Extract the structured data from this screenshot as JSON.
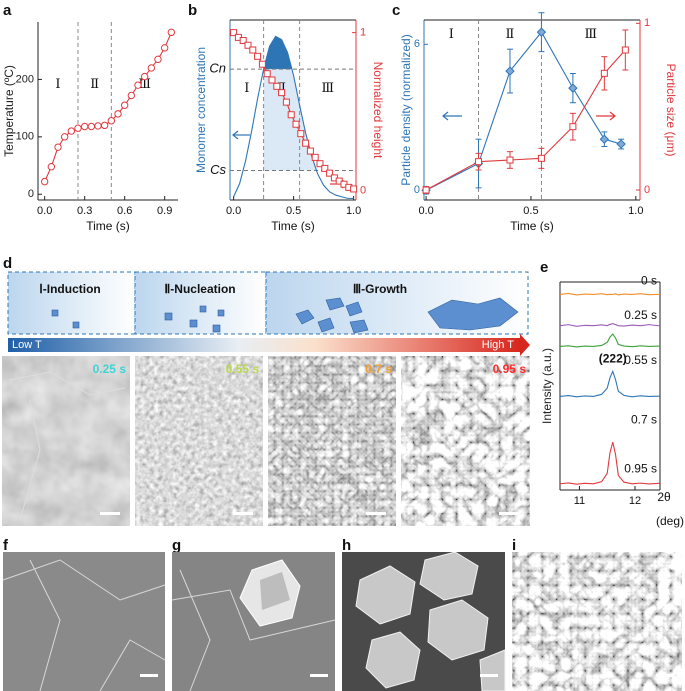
{
  "panel_labels": [
    "a",
    "b",
    "c",
    "d",
    "e",
    "f",
    "g",
    "h",
    "i"
  ],
  "schematic": {
    "stages": [
      "Ⅰ-Induction",
      "Ⅱ-Nucleation",
      "Ⅲ-Growth"
    ],
    "low_t": "Low T",
    "high_t": "High T"
  },
  "sem": {
    "times": [
      "0.25 s",
      "0.55 s",
      "0.7 s",
      "0.95 s"
    ]
  },
  "chart_data": [
    {
      "type": "line",
      "x_label": "Time (s)",
      "y_label": "Temperature (ºC)",
      "x": [
        0,
        0.05,
        0.1,
        0.15,
        0.2,
        0.25,
        0.3,
        0.35,
        0.4,
        0.45,
        0.5,
        0.55,
        0.6,
        0.65,
        0.7,
        0.75,
        0.8,
        0.85,
        0.9,
        0.95
      ],
      "series": [
        {
          "color": "#e0393e",
          "marker": "circle",
          "values": [
            22,
            48,
            82,
            100,
            110,
            115,
            118,
            118,
            119,
            120,
            128,
            140,
            155,
            172,
            190,
            205,
            220,
            235,
            255,
            282
          ]
        }
      ],
      "xlim": [
        -0.05,
        1.0
      ],
      "xticks": [
        {
          "value": 0,
          "label": "0.0"
        },
        0.3,
        0.6,
        0.9
      ],
      "ylim": [
        -10,
        300
      ],
      "yticks": [
        0,
        100,
        200
      ],
      "dividers": [
        0.25,
        0.5
      ],
      "regions": [
        "Ⅰ",
        "Ⅱ",
        "Ⅲ"
      ]
    },
    {
      "type": "line",
      "x_label": "Time (s)",
      "y_label": "Monomer concentration",
      "y2_label": "Normalized height",
      "y_color": "#2e75b6",
      "y2_color": "#e0393e",
      "grid": true,
      "series": [
        {
          "color": "#2e75b6",
          "marker": "none",
          "fill": [
            "#dbe8f5",
            "#2e75b6"
          ],
          "x": [
            0,
            0.05,
            0.1,
            0.15,
            0.2,
            0.25,
            0.3,
            0.35,
            0.4,
            0.45,
            0.5,
            0.55,
            0.6,
            0.65,
            0.7,
            0.75,
            0.8,
            0.85,
            0.9,
            0.95,
            1.0
          ],
          "values": [
            0.02,
            0.1,
            0.24,
            0.42,
            0.62,
            0.8,
            0.94,
            1.0,
            0.98,
            0.9,
            0.76,
            0.58,
            0.41,
            0.27,
            0.16,
            0.09,
            0.05,
            0.03,
            0.02,
            0.01,
            0.01
          ]
        },
        {
          "color": "#e0393e",
          "marker": "square",
          "axis": "y2",
          "x": [
            0,
            0.04,
            0.08,
            0.12,
            0.16,
            0.2,
            0.24,
            0.28,
            0.32,
            0.36,
            0.4,
            0.44,
            0.48,
            0.52,
            0.56,
            0.6,
            0.64,
            0.68,
            0.72,
            0.76,
            0.8,
            0.84,
            0.88,
            0.92,
            0.96,
            1.0
          ],
          "values": [
            1.0,
            0.97,
            0.95,
            0.92,
            0.89,
            0.85,
            0.8,
            0.74,
            0.7,
            0.66,
            0.62,
            0.56,
            0.48,
            0.42,
            0.36,
            0.3,
            0.25,
            0.21,
            0.17,
            0.14,
            0.11,
            0.08,
            0.06,
            0.04,
            0.02,
            0.01
          ]
        }
      ],
      "xlim": [
        -0.03,
        1.02
      ],
      "xticks": [
        {
          "value": 0,
          "label": "0.0"
        },
        {
          "value": 0.5,
          "label": "0.5"
        },
        {
          "value": 1,
          "label": "1.0"
        }
      ],
      "ylim": [
        0,
        1.1
      ],
      "yticks": [
        {
          "value": 0.8,
          "label": "Cn"
        },
        {
          "value": 0.18,
          "label": "Cs"
        }
      ],
      "y2lim": [
        -0.06,
        1.08
      ],
      "y2ticks": [
        0,
        1
      ],
      "dividers": [
        0.25,
        0.55
      ],
      "regions": [
        "Ⅰ",
        "Ⅱ",
        "Ⅲ"
      ]
    },
    {
      "type": "line",
      "x_label": "Time (s)",
      "y_label": "Particle density (normalized)",
      "y2_label": "Particle size (μm)",
      "y_color": "#2e75b6",
      "y2_color": "#e0393e",
      "series": [
        {
          "color": "#2e75b6",
          "marker": "diamond",
          "x": [
            0,
            0.25,
            0.4,
            0.55,
            0.7,
            0.85,
            0.93
          ],
          "values": [
            0,
            1.1,
            4.9,
            6.5,
            4.2,
            2.1,
            1.9
          ],
          "errors": [
            0.15,
            1.0,
            0.9,
            0.8,
            0.6,
            0.3,
            0.2
          ]
        },
        {
          "color": "#e0393e",
          "marker": "square",
          "axis": "y2",
          "x": [
            0,
            0.25,
            0.4,
            0.55,
            0.7,
            0.85,
            0.95
          ],
          "values": [
            0,
            0.17,
            0.18,
            0.19,
            0.38,
            0.7,
            0.84
          ],
          "errors": [
            0.02,
            0.05,
            0.05,
            0.06,
            0.08,
            0.1,
            0.12
          ]
        }
      ],
      "xlim": [
        -0.01,
        1.02
      ],
      "xticks": [
        {
          "value": 0,
          "label": "0.0"
        },
        {
          "value": 0.5,
          "label": "0.5"
        },
        {
          "value": 1,
          "label": "1.0"
        }
      ],
      "ylim": [
        -0.4,
        7.0
      ],
      "yticks": [
        0,
        6
      ],
      "y2lim": [
        -0.06,
        1.02
      ],
      "y2ticks": [
        0,
        1
      ],
      "dividers": [
        0.25,
        0.55
      ],
      "regions": [
        "Ⅰ",
        "Ⅱ",
        "Ⅲ"
      ]
    },
    {
      "type": "line",
      "x_label": "2θ",
      "x_unit": "(deg)",
      "y_label": "Intensity (a.u.)",
      "annotation": "(222)",
      "x": [
        10.65,
        10.8,
        10.95,
        11.1,
        11.25,
        11.4,
        11.5,
        11.55,
        11.6,
        11.65,
        11.7,
        11.8,
        11.95,
        12.1,
        12.25,
        12.45
      ],
      "series": [
        {
          "name": "0 s",
          "color": "#f28e2b",
          "values": [
            9.4,
            9.45,
            9.38,
            9.42,
            9.4,
            9.44,
            9.39,
            9.41,
            9.4,
            9.43,
            9.38,
            9.42,
            9.4,
            9.44,
            9.39,
            9.41
          ]
        },
        {
          "name": "0.25 s",
          "color": "#9b59b6",
          "values": [
            7.9,
            7.95,
            7.87,
            7.92,
            7.9,
            7.94,
            7.9,
            7.96,
            8.0,
            7.95,
            7.9,
            7.88,
            7.93,
            7.9,
            7.95,
            7.89
          ]
        },
        {
          "name": "0.55 s",
          "color": "#3aa33a",
          "values": [
            6.9,
            6.93,
            6.88,
            6.92,
            6.9,
            6.95,
            7.1,
            7.35,
            7.5,
            7.3,
            7.0,
            6.92,
            6.89,
            6.93,
            6.9,
            6.92
          ]
        },
        {
          "name": "0.7 s",
          "color": "#2e75b6",
          "values": [
            4.5,
            4.54,
            4.48,
            4.52,
            4.5,
            4.6,
            4.9,
            5.4,
            5.7,
            5.3,
            4.75,
            4.55,
            4.48,
            4.53,
            4.5,
            4.51
          ]
        },
        {
          "name": "0.95 s",
          "color": "#e0393e",
          "values": [
            0.3,
            0.34,
            0.28,
            0.32,
            0.3,
            0.4,
            0.8,
            1.8,
            2.3,
            1.7,
            0.7,
            0.38,
            0.3,
            0.33,
            0.29,
            0.32
          ]
        }
      ],
      "xlim": [
        10.65,
        12.45
      ],
      "xticks": [
        11,
        12
      ],
      "ylim": [
        0,
        10
      ]
    }
  ]
}
